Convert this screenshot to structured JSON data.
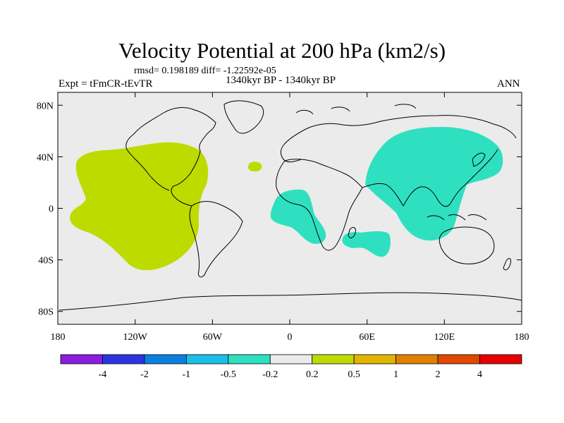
{
  "title": "Velocity Potential at 200 hPa (km2/s)",
  "stats": "rmsd= 0.198189 diff= -1.22592e-05",
  "left_label": "Expt = tFmCR-tEvTR",
  "center_label": "1340kyr BP - 1340kyr BP",
  "right_label": "ANN",
  "map": {
    "lat_ticks": [
      "80N",
      "40N",
      "0",
      "40S",
      "80S"
    ],
    "lon_ticks": [
      "180",
      "120W",
      "60W",
      "0",
      "60E",
      "120E",
      "180"
    ],
    "ocean_color": "#ebebeb",
    "positive_color": "#bedb00",
    "negative_color": "#2fe0c0"
  },
  "colorbar": {
    "colors": [
      "#8a1ee0",
      "#2a35e0",
      "#0b80e0",
      "#1bc0e6",
      "#2fe0c0",
      "#ebebeb",
      "#bedb00",
      "#e0b400",
      "#e08000",
      "#e04800",
      "#e60000"
    ],
    "labels": [
      "-4",
      "-2",
      "-1",
      "-0.5",
      "-0.2",
      "0.2",
      "0.5",
      "1",
      "2",
      "4"
    ]
  }
}
